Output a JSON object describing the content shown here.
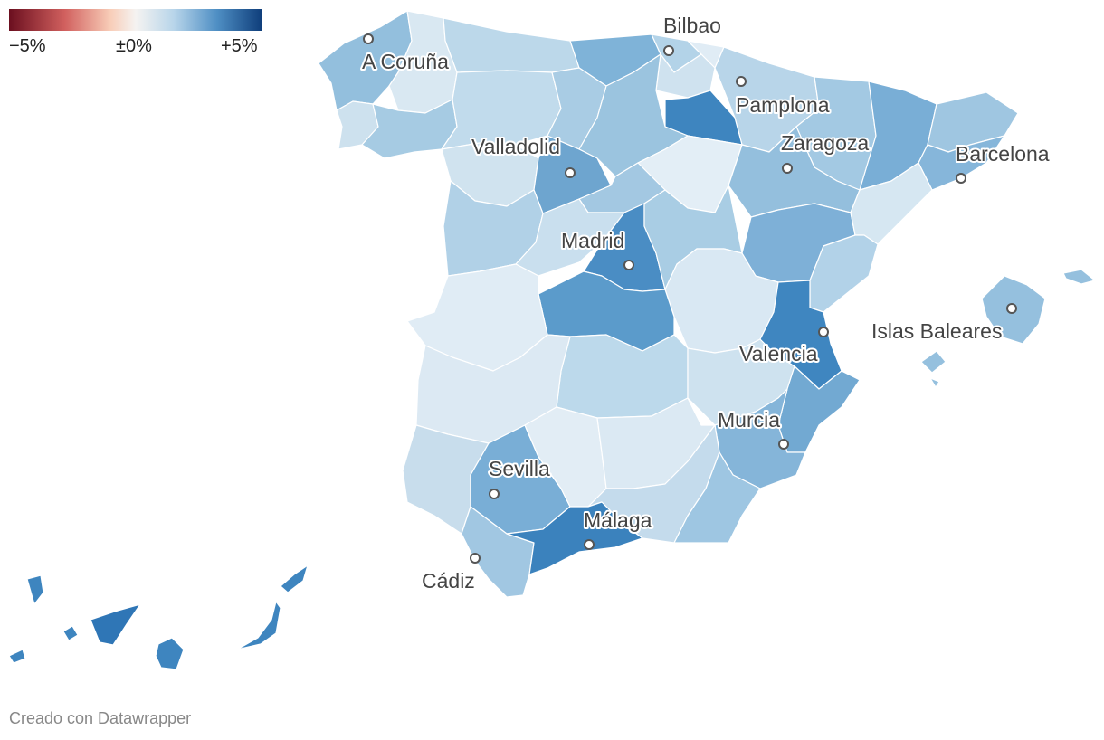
{
  "legend": {
    "min_label": "−5%",
    "mid_label": "±0%",
    "max_label": "+5%",
    "min_value": -5,
    "max_value": 5
  },
  "colors": {
    "neg_dark": "#7f1d2d",
    "neg_light": "#f6c9b4",
    "neutral": "#f4f1ef",
    "pos_light": "#cfe3f0",
    "pos_mid": "#7fb2d8",
    "pos_dark": "#1a4d8f"
  },
  "cities": [
    {
      "name": "A Coruña"
    },
    {
      "name": "Bilbao"
    },
    {
      "name": "Pamplona"
    },
    {
      "name": "Zaragoza"
    },
    {
      "name": "Barcelona"
    },
    {
      "name": "Valladolid"
    },
    {
      "name": "Madrid"
    },
    {
      "name": "Valencia"
    },
    {
      "name": "Islas Baleares"
    },
    {
      "name": "Murcia"
    },
    {
      "name": "Sevilla"
    },
    {
      "name": "Málaga"
    },
    {
      "name": "Cádiz"
    }
  ],
  "footer": "Creado con Datawrapper"
}
